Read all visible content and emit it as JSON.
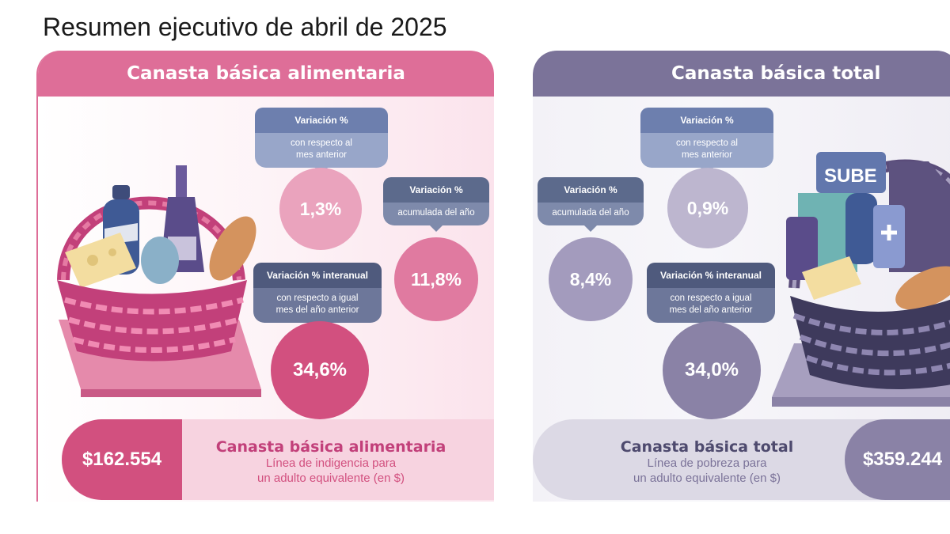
{
  "title": "Resumen ejecutivo de abril de 2025",
  "colors": {
    "pink": "#de6e98",
    "pink_dark": "#d2507f",
    "purple": "#7b7399",
    "slate": "#5c6a8c",
    "blue_tag": "#6d7fae"
  },
  "left": {
    "header": "Canasta básica alimentaria",
    "monthly": {
      "label": "Variación %",
      "sub1": "con respecto al",
      "sub2": "mes anterior",
      "value": "1,3%"
    },
    "ytd": {
      "label": "Variación %",
      "sub": "acumulada del año",
      "value": "11,8%"
    },
    "yoy": {
      "label": "Variación % interanual",
      "sub1": "con respecto a igual",
      "sub2": "mes del año anterior",
      "value": "34,6%"
    },
    "price": "$162.554",
    "name": "Canasta básica alimentaria",
    "desc1": "Línea de indigencia para",
    "desc2": "un adulto equivalente (en $)"
  },
  "right": {
    "header": "Canasta básica total",
    "monthly": {
      "label": "Variación %",
      "sub1": "con respecto al",
      "sub2": "mes anterior",
      "value": "0,9%"
    },
    "ytd": {
      "label": "Variación %",
      "sub": "acumulada del año",
      "value": "8,4%"
    },
    "yoy": {
      "label": "Variación % interanual",
      "sub1": "con respecto a igual",
      "sub2": "mes del año anterior",
      "value": "34,0%"
    },
    "price": "$359.244",
    "name": "Canasta básica total",
    "desc1": "Línea de pobreza para",
    "desc2": "un adulto equivalente (en $)",
    "card_text": "SUBE"
  }
}
